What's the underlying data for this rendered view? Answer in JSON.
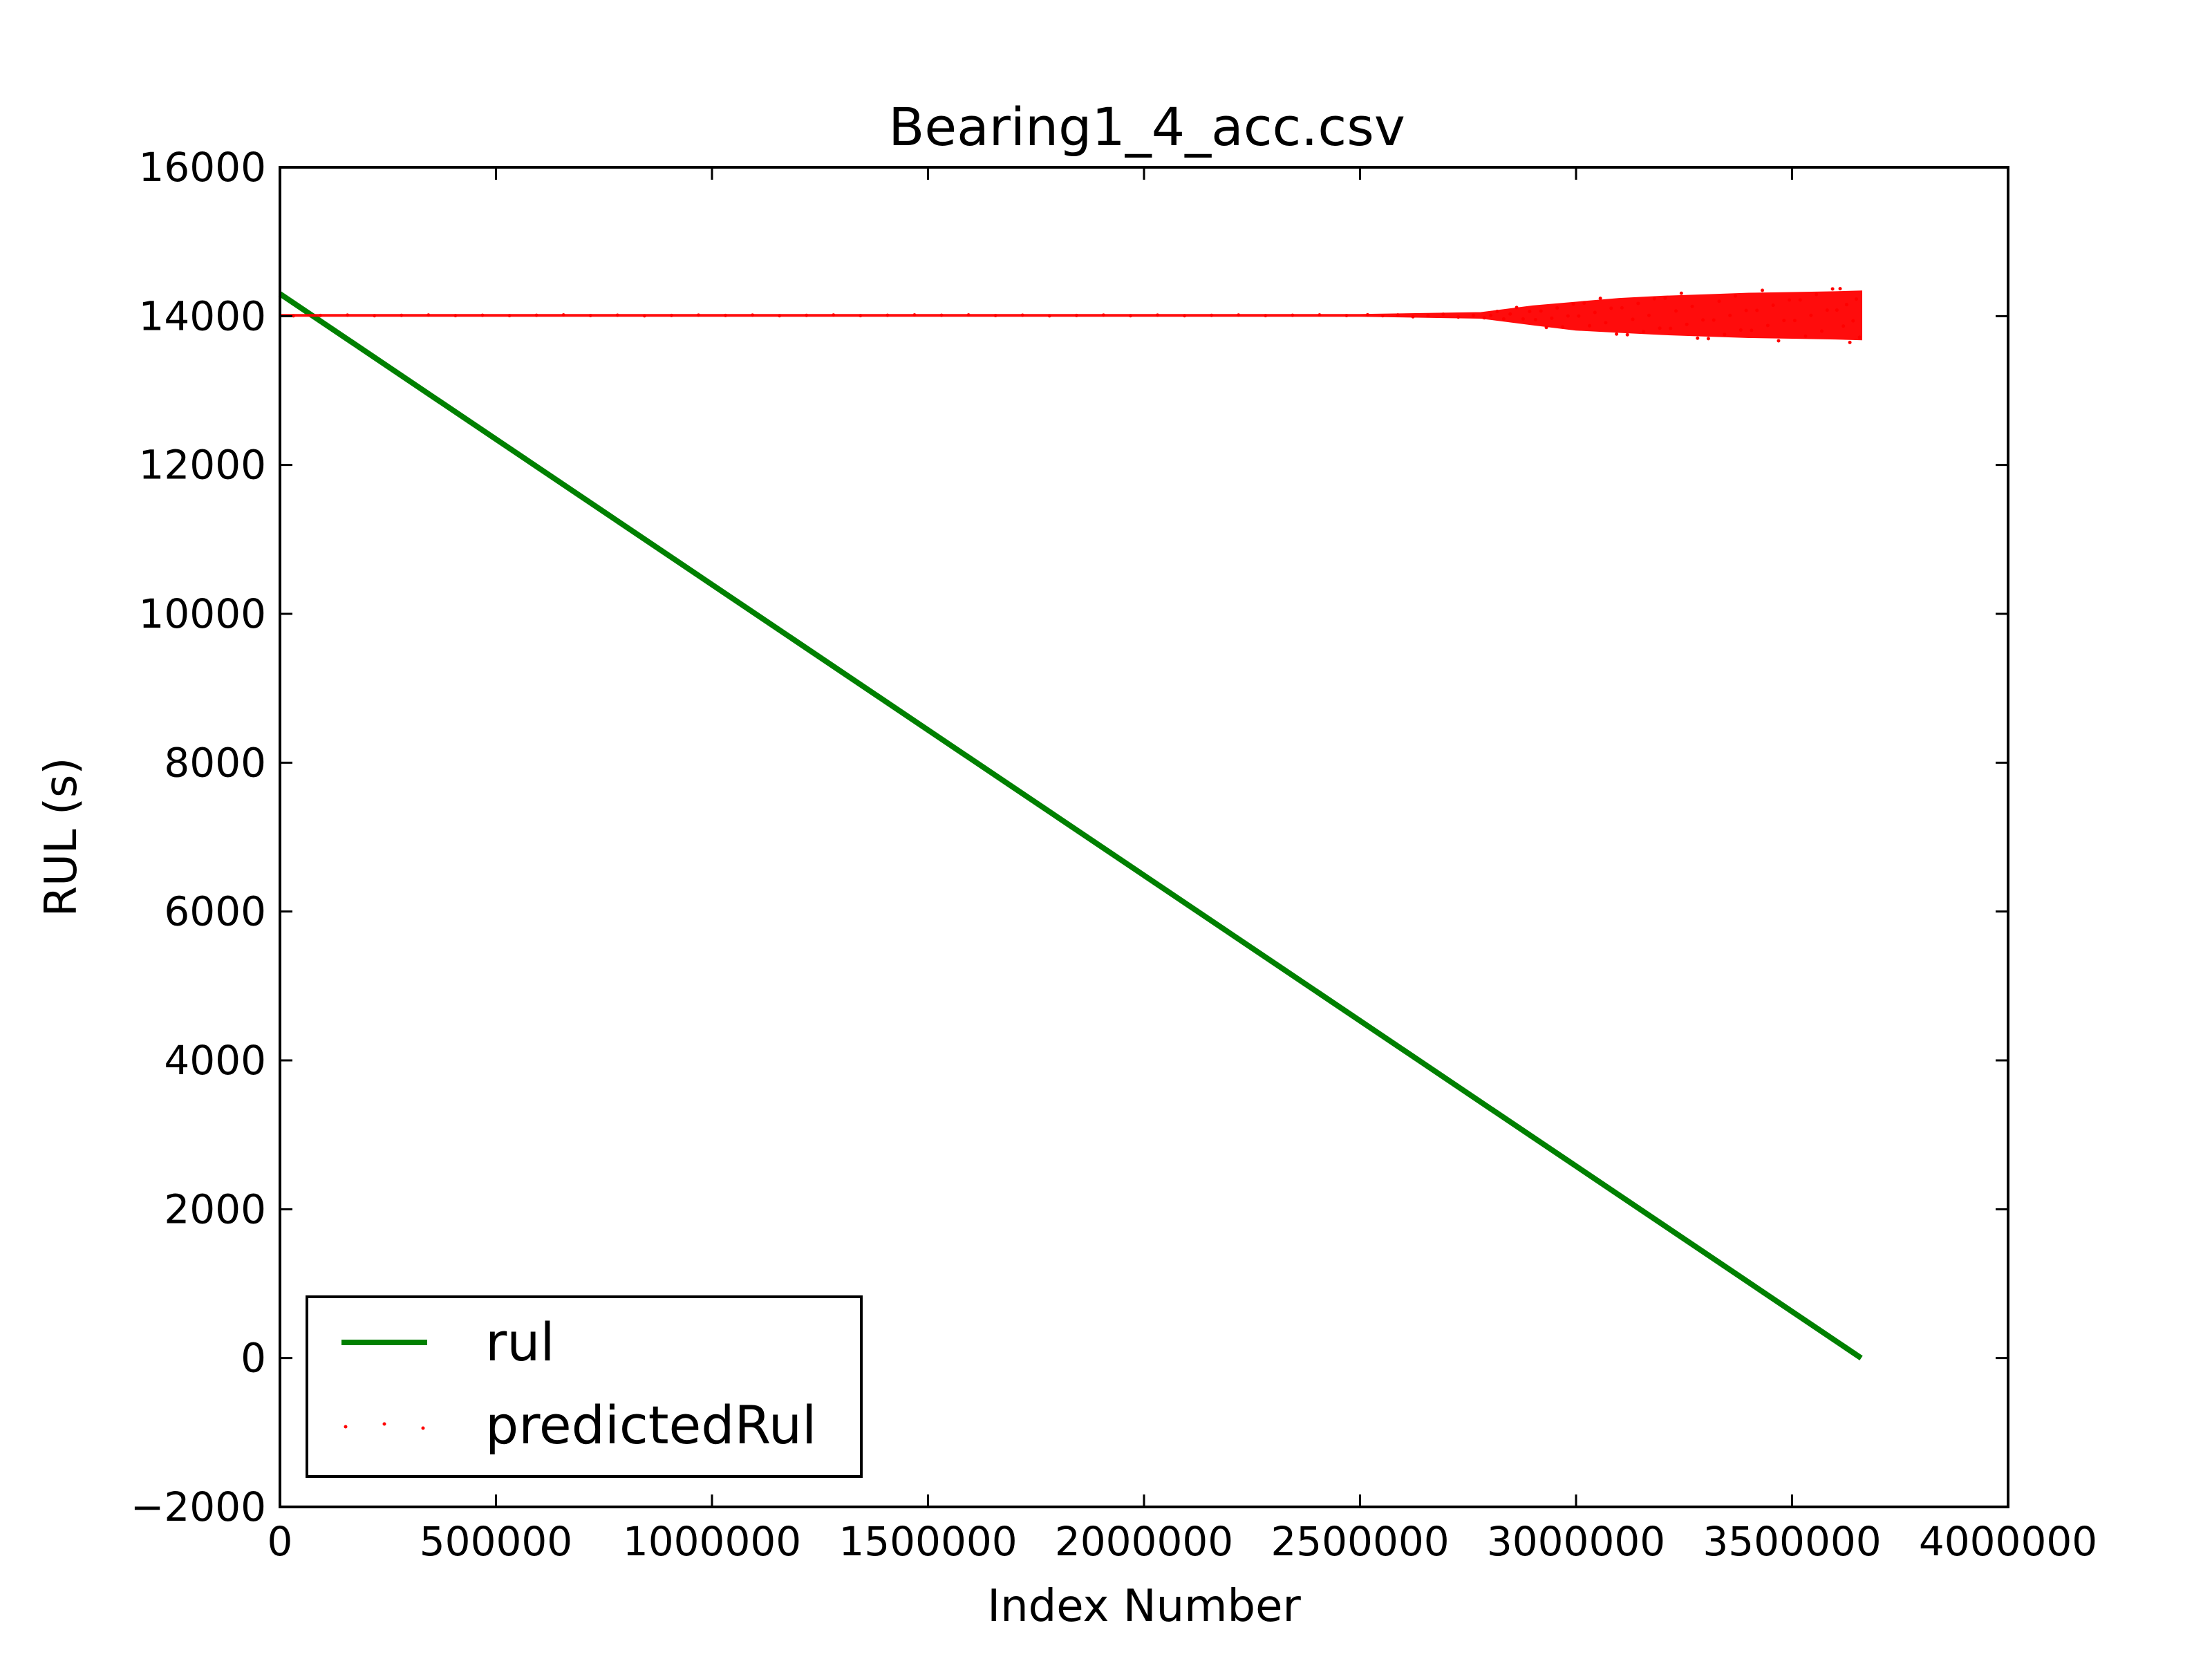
{
  "chart_data": {
    "type": "line",
    "title": "Bearing1_4_acc.csv",
    "xlabel": "Index Number",
    "ylabel": "RUL (s)",
    "xlim": [
      0,
      4000000
    ],
    "ylim": [
      -2000,
      16000
    ],
    "x_ticks": [
      0,
      500000,
      1000000,
      1500000,
      2000000,
      2500000,
      3000000,
      3500000,
      4000000
    ],
    "x_tick_labels": [
      "0",
      "500000",
      "1000000",
      "1500000",
      "2000000",
      "2500000",
      "3000000",
      "3500000",
      "4000000"
    ],
    "y_ticks": [
      -2000,
      0,
      2000,
      4000,
      6000,
      8000,
      10000,
      12000,
      14000,
      16000
    ],
    "y_tick_labels": [
      "−2000",
      "0",
      "2000",
      "4000",
      "6000",
      "8000",
      "10000",
      "12000",
      "14000",
      "16000"
    ],
    "grid": false,
    "legend_position": "lower-left",
    "series": [
      {
        "name": "rul",
        "style": "line",
        "color": "#008000",
        "x": [
          0,
          3660000
        ],
        "y": [
          14300,
          0
        ]
      },
      {
        "name": "predictedRul",
        "style": "scatter",
        "color": "#ff0000",
        "x": [
          0,
          500000,
          1000000,
          1500000,
          2000000,
          2500000,
          2780000,
          2900000,
          3000000,
          3100000,
          3200000,
          3300000,
          3400000,
          3500000,
          3600000,
          3660000
        ],
        "y_center": [
          14010,
          14010,
          14010,
          14010,
          14010,
          14010,
          14010,
          14010,
          14000,
          14010,
          14010,
          14010,
          14010,
          14010,
          14010,
          14010
        ],
        "y_spread": [
          5,
          5,
          5,
          5,
          5,
          5,
          30,
          120,
          180,
          220,
          250,
          270,
          290,
          300,
          310,
          320
        ]
      }
    ]
  }
}
